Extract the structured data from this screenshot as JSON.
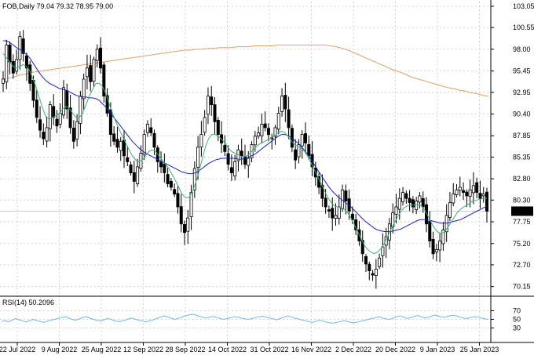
{
  "header": {
    "text": "FOB,Daily  79.04 79.32 78.95 79.00"
  },
  "rsi_header": {
    "text": "RSI(14) 50.2096"
  },
  "price_badge": {
    "value": "79.00"
  },
  "colors": {
    "candle": "#000000",
    "ma_fast": "#3cb371",
    "ma_mid": "#1f1fbf",
    "ma_slow": "#e0a068",
    "rsi": "#6fb7e8",
    "grid": "#c8c8c8",
    "badge_bg": "#000000",
    "badge_fg": "#ffffff"
  },
  "chart_data": [
    {
      "type": "candlestick",
      "instrument": "FOB",
      "timeframe": "Daily",
      "y_ticks": [
        103.05,
        100.55,
        98.0,
        95.45,
        92.95,
        90.4,
        87.85,
        85.35,
        82.8,
        80.3,
        77.75,
        75.2,
        72.7,
        70.15
      ],
      "ylim": [
        69.2,
        103.6
      ],
      "x_tick_labels": [
        "22 Jul 2022",
        "9 Aug 2022",
        "25 Aug 2022",
        "12 Sep 2022",
        "28 Sep 2022",
        "14 Oct 2022",
        "31 Oct 2022",
        "16 Nov 2022",
        "2 Dec 2022",
        "20 Dec 2022",
        "9 Jan 2023",
        "25 Jan 2023"
      ],
      "grid": true,
      "close_trend": [
        94.5,
        98.5,
        96.5,
        95.2,
        96.8,
        99.5,
        97.5,
        95.8,
        94.0,
        92.0,
        90.0,
        88.5,
        87.5,
        88.8,
        91.5,
        90.0,
        89.0,
        90.5,
        93.5,
        91.0,
        88.8,
        87.2,
        89.5,
        92.5,
        94.5,
        95.8,
        94.2,
        96.8,
        98.0,
        95.8,
        92.5,
        90.5,
        88.0,
        87.2,
        86.5,
        87.2,
        85.5,
        84.8,
        83.5,
        82.5,
        84.2,
        85.8,
        88.0,
        89.2,
        88.2,
        86.5,
        84.8,
        84.2,
        83.5,
        82.2,
        81.8,
        81.0,
        79.5,
        77.5,
        76.5,
        78.2,
        81.2,
        84.0,
        86.5,
        88.0,
        90.0,
        92.5,
        91.5,
        89.5,
        88.0,
        87.0,
        86.0,
        84.5,
        83.5,
        84.8,
        86.2,
        85.5,
        84.5,
        85.2,
        86.8,
        87.8,
        88.2,
        89.2,
        88.8,
        88.0,
        87.5,
        88.8,
        90.5,
        92.5,
        91.0,
        88.8,
        86.5,
        85.0,
        86.8,
        88.0,
        87.0,
        85.5,
        84.2,
        83.0,
        81.8,
        80.5,
        79.5,
        79.0,
        78.2,
        78.5,
        79.5,
        81.5,
        80.2,
        79.0,
        78.0,
        76.8,
        75.5,
        74.0,
        72.8,
        72.0,
        71.5,
        72.2,
        73.5,
        74.8,
        76.0,
        77.5,
        78.8,
        79.5,
        80.5,
        81.2,
        80.5,
        80.0,
        79.5,
        80.2,
        80.8,
        79.5,
        77.5,
        75.5,
        74.0,
        74.5,
        75.5,
        76.8,
        78.5,
        80.0,
        81.0,
        81.5,
        81.8,
        81.2,
        80.8,
        81.5,
        82.0,
        81.2,
        80.5,
        81.0,
        79.0
      ],
      "ma_fast_trend": [
        97.5,
        97.0,
        96.5,
        96.0,
        95.8,
        96.0,
        96.2,
        96.0,
        95.5,
        94.5,
        93.5,
        92.2,
        91.0,
        90.0,
        89.8,
        90.0,
        90.2,
        90.5,
        91.0,
        91.3,
        91.0,
        90.5,
        90.0,
        90.0,
        90.5,
        91.5,
        92.5,
        93.3,
        94.0,
        94.0,
        93.6,
        92.8,
        91.6,
        90.5,
        89.5,
        88.6,
        87.8,
        87.0,
        86.2,
        85.5,
        85.0,
        84.8,
        85.0,
        85.5,
        86.0,
        86.2,
        86.0,
        85.5,
        85.0,
        84.5,
        84.0,
        83.3,
        82.6,
        81.8,
        81.0,
        80.6,
        80.6,
        81.2,
        82.2,
        83.5,
        85.0,
        86.5,
        87.5,
        88.0,
        88.0,
        87.8,
        87.4,
        87.0,
        86.4,
        86.0,
        85.8,
        85.6,
        85.4,
        85.4,
        85.6,
        86.0,
        86.4,
        86.8,
        87.0,
        87.2,
        87.4,
        87.6,
        87.9,
        88.2,
        88.4,
        88.2,
        87.8,
        87.2,
        86.8,
        86.6,
        86.4,
        86.0,
        85.4,
        84.6,
        83.8,
        83.0,
        82.2,
        81.4,
        80.6,
        80.0,
        79.6,
        79.5,
        79.4,
        79.2,
        78.8,
        78.2,
        77.4,
        76.6,
        75.8,
        75.0,
        74.5,
        74.2,
        74.0,
        74.2,
        74.6,
        75.2,
        76.0,
        76.8,
        77.6,
        78.3,
        78.9,
        79.4,
        79.6,
        79.7,
        79.7,
        79.8,
        79.7,
        79.3,
        78.6,
        77.8,
        77.1,
        76.6,
        76.4,
        76.5,
        77.0,
        77.6,
        78.2,
        78.8,
        79.2,
        79.5,
        79.7,
        80.0,
        80.2,
        80.3,
        80.4,
        80.5,
        80.5
      ],
      "ma_mid_trend": [
        99.0,
        99.0,
        98.8,
        98.5,
        98.2,
        98.0,
        97.7,
        97.4,
        97.0,
        96.4,
        95.8,
        95.2,
        94.7,
        94.3,
        94.0,
        93.8,
        93.6,
        93.4,
        93.3,
        93.2,
        93.0,
        92.8,
        92.6,
        92.5,
        92.4,
        92.4,
        92.3,
        92.3,
        92.2,
        92.0,
        91.6,
        91.2,
        90.7,
        90.2,
        89.7,
        89.2,
        88.7,
        88.2,
        87.7,
        87.2,
        86.8,
        86.4,
        86.1,
        85.8,
        85.6,
        85.4,
        85.2,
        85.0,
        84.8,
        84.6,
        84.4,
        84.2,
        84.0,
        83.8,
        83.6,
        83.5,
        83.4,
        83.4,
        83.5,
        83.7,
        84.0,
        84.3,
        84.6,
        84.8,
        85.0,
        85.1,
        85.2,
        85.2,
        85.2,
        85.2,
        85.2,
        85.1,
        85.1,
        85.2,
        85.3,
        85.5,
        85.7,
        86.0,
        86.3,
        86.6,
        86.9,
        87.2,
        87.5,
        87.8,
        88.0,
        88.0,
        87.9,
        87.6,
        87.3,
        87.0,
        86.6,
        86.1,
        85.6,
        85.0,
        84.4,
        83.8,
        83.2,
        82.6,
        82.0,
        81.5,
        81.1,
        80.7,
        80.4,
        80.1,
        79.8,
        79.5,
        79.1,
        78.7,
        78.3,
        77.9,
        77.6,
        77.3,
        77.0,
        76.8,
        76.7,
        76.6,
        76.6,
        76.6,
        76.7,
        76.8,
        76.9,
        77.1,
        77.3,
        77.5,
        77.7,
        77.9,
        78.0,
        78.0,
        78.0,
        77.9,
        77.8,
        77.7,
        77.6,
        77.6,
        77.6,
        77.7,
        77.8,
        77.9,
        78.0,
        78.2,
        78.4,
        78.6,
        78.8,
        79.0,
        79.2,
        79.4,
        79.6
      ],
      "ma_slow_trend": [
        94.5,
        94.6,
        94.8,
        95.0,
        95.1,
        95.3,
        95.4,
        95.5,
        95.6,
        95.7,
        95.8,
        95.9,
        96.0,
        96.1,
        96.2,
        96.3,
        96.4,
        96.5,
        96.6,
        96.7,
        96.8,
        96.9,
        97.0,
        97.1,
        97.2,
        97.3,
        97.4,
        97.5,
        97.6,
        97.7,
        97.8,
        97.9,
        97.9,
        98.0,
        98.0,
        98.1,
        98.1,
        98.2,
        98.2,
        98.2,
        98.3,
        98.3,
        98.3,
        98.4,
        98.4,
        98.4,
        98.4,
        98.5,
        98.5,
        98.5,
        98.5,
        98.5,
        98.5,
        98.5,
        98.5,
        98.5,
        98.4,
        98.3,
        98.1,
        97.9,
        97.6,
        97.3,
        97.0,
        96.7,
        96.4,
        96.1,
        95.8,
        95.5,
        95.3,
        95.0,
        94.7,
        94.5,
        94.3,
        94.1,
        93.9,
        93.7,
        93.5,
        93.4,
        93.2,
        93.1,
        92.9,
        92.8,
        92.6,
        92.5
      ],
      "rsi": {
        "label": "RSI(14)",
        "value": 50.2096,
        "levels": [
          70,
          50,
          30
        ],
        "ylim": [
          0,
          100
        ],
        "trend": [
          45,
          47,
          44,
          48,
          52,
          49,
          46,
          44,
          47,
          50,
          47,
          45,
          43,
          46,
          48,
          50,
          52,
          54,
          56,
          53,
          50,
          48,
          51,
          54,
          56,
          53,
          50,
          48,
          46,
          49,
          52,
          50,
          47,
          45,
          46,
          48,
          51,
          53,
          50,
          48,
          46,
          44,
          47,
          49,
          52,
          55,
          58,
          56,
          53,
          50,
          52,
          55,
          58,
          60,
          62,
          60,
          57,
          55,
          53,
          55,
          57,
          54,
          52,
          50,
          52,
          54,
          56,
          55,
          53,
          51,
          50,
          52,
          54,
          56,
          57,
          55,
          53,
          51,
          49,
          52,
          55,
          58,
          56,
          53,
          51,
          49,
          47,
          45,
          43,
          45,
          48,
          46,
          44,
          42,
          41,
          43,
          45,
          47,
          45,
          43,
          42,
          44,
          46,
          48,
          50,
          52,
          54,
          56,
          53,
          51,
          50,
          53,
          56,
          58,
          55,
          52,
          54,
          57,
          59,
          56,
          53,
          55,
          58,
          60,
          57,
          55,
          56,
          58,
          60,
          58,
          55,
          53,
          52,
          54,
          56,
          55,
          53,
          51,
          50
        ]
      }
    }
  ]
}
